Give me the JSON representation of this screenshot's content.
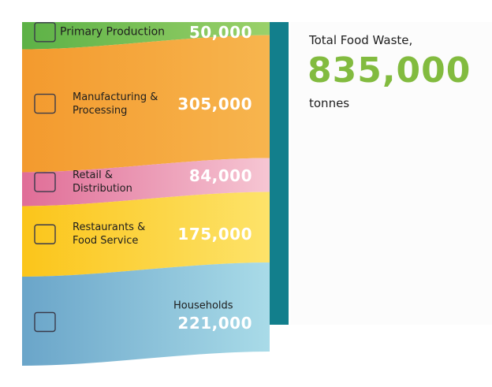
{
  "chart_data": {
    "type": "stacked-band",
    "categories": [
      "Primary Production",
      "Manufacturing & Processing",
      "Retail & Distribution",
      "Restaurants & Food Service",
      "Households"
    ],
    "values": [
      50000,
      305000,
      84000,
      175000,
      221000
    ],
    "value_labels": [
      "50,000",
      "305,000",
      "84,000",
      "175,000",
      "221,000"
    ],
    "colors": [
      [
        "#5cb146",
        "#9ad16a"
      ],
      [
        "#f39a2e",
        "#f7b54e"
      ],
      [
        "#e06d97",
        "#f6c6d3"
      ],
      [
        "#fbc51a",
        "#fde36a"
      ],
      [
        "#6aa5c9",
        "#a9dbe8"
      ]
    ],
    "total": {
      "label": "Total Food Waste,",
      "value": 835000,
      "value_label": "835,000",
      "unit": "tonnes",
      "color": "#127f8c"
    }
  }
}
